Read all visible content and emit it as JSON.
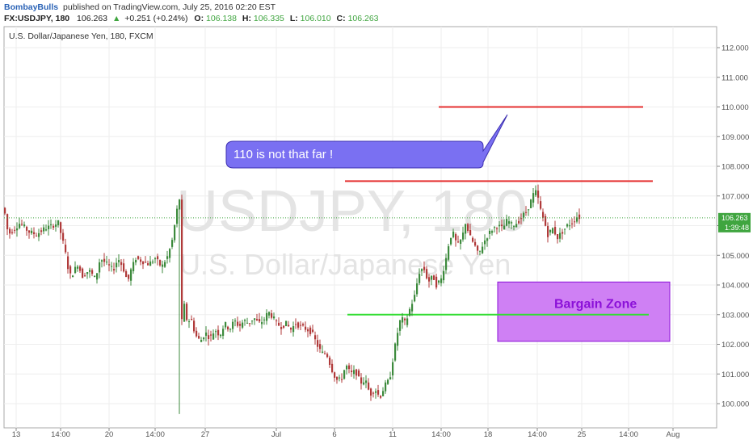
{
  "header": {
    "author": "BombayBulls",
    "published_text": "published on TradingView.com, July 25, 2016 02:20 EST",
    "symbol_interval": "FX:USDJPY, 180",
    "price": "106.263",
    "change_arrow": "▲",
    "change": "+0.251 (+0.24%)",
    "o_label": "O:",
    "o_value": "106.138",
    "h_label": "H:",
    "h_value": "106.335",
    "l_label": "L:",
    "l_value": "106.010",
    "c_label": "C:",
    "c_value": "106.263"
  },
  "chart_title": "U.S. Dollar/Japanese Yen, 180, FXCM",
  "watermark": {
    "line1": "USDJPY, 180",
    "line2": "U.S. Dollar/Japanese Yen"
  },
  "price_tag": "106.263",
  "countdown": "1:39:48",
  "annotations": {
    "callout_text": "110 is not that far !",
    "zone_label": "Bargain Zone"
  },
  "colors": {
    "up_candle": "#3c8a3c",
    "down_candle": "#b03a3a",
    "red_line": "#e53030",
    "green_line": "#33dd33",
    "callout_fill": "#7a70f2",
    "zone_fill": "#cf80f4",
    "zone_text": "#8b10d8",
    "price_tag": "#3fa53f"
  },
  "chart_data": {
    "type": "candlestick",
    "title": "U.S. Dollar/Japanese Yen, 180, FXCM",
    "ylim": [
      99.3,
      112.7
    ],
    "y_ticks": [
      "100.000",
      "101.000",
      "102.000",
      "103.000",
      "104.000",
      "105.000",
      "106.000",
      "107.000",
      "108.000",
      "109.000",
      "110.000",
      "111.000",
      "112.000"
    ],
    "x_ticks": [
      "13",
      "14:00",
      "20",
      "14:00",
      "27",
      "Jul",
      "6",
      "11",
      "14:00",
      "18",
      "14:00",
      "25",
      "14:00",
      "Aug"
    ],
    "path_points": [
      [
        0,
        106.8
      ],
      [
        6,
        106.4
      ],
      [
        10,
        105.7
      ],
      [
        18,
        105.9
      ],
      [
        25,
        106.1
      ],
      [
        35,
        105.8
      ],
      [
        45,
        105.7
      ],
      [
        55,
        105.9
      ],
      [
        65,
        106.0
      ],
      [
        72,
        106.1
      ],
      [
        80,
        105.2
      ],
      [
        86,
        104.3
      ],
      [
        90,
        104.4
      ],
      [
        96,
        104.7
      ],
      [
        102,
        104.3
      ],
      [
        110,
        104.5
      ],
      [
        118,
        104.2
      ],
      [
        124,
        104.9
      ],
      [
        132,
        104.7
      ],
      [
        140,
        104.5
      ],
      [
        146,
        104.9
      ],
      [
        152,
        104.6
      ],
      [
        158,
        104.1
      ],
      [
        162,
        104.5
      ],
      [
        168,
        104.9
      ],
      [
        176,
        104.8
      ],
      [
        184,
        104.7
      ],
      [
        192,
        104.9
      ],
      [
        200,
        104.6
      ],
      [
        208,
        105.0
      ],
      [
        214,
        105.6
      ],
      [
        218,
        106.4
      ],
      [
        222,
        106.9
      ],
      [
        224,
        102.6
      ],
      [
        228,
        103.3
      ],
      [
        232,
        102.7
      ],
      [
        236,
        102.9
      ],
      [
        242,
        102.3
      ],
      [
        248,
        102.1
      ],
      [
        254,
        102.4
      ],
      [
        260,
        102.2
      ],
      [
        266,
        102.5
      ],
      [
        272,
        102.3
      ],
      [
        278,
        102.7
      ],
      [
        284,
        102.5
      ],
      [
        290,
        102.8
      ],
      [
        296,
        102.6
      ],
      [
        302,
        102.8
      ],
      [
        308,
        102.7
      ],
      [
        314,
        102.9
      ],
      [
        320,
        102.7
      ],
      [
        326,
        102.8
      ],
      [
        332,
        103.1
      ],
      [
        338,
        102.9
      ],
      [
        342,
        102.7
      ],
      [
        348,
        102.6
      ],
      [
        354,
        102.7
      ],
      [
        360,
        102.5
      ],
      [
        366,
        102.7
      ],
      [
        372,
        102.6
      ],
      [
        380,
        102.5
      ],
      [
        386,
        102.4
      ],
      [
        392,
        102.0
      ],
      [
        398,
        101.7
      ],
      [
        404,
        101.7
      ],
      [
        410,
        101.2
      ],
      [
        416,
        100.8
      ],
      [
        422,
        100.8
      ],
      [
        428,
        101.3
      ],
      [
        434,
        101.0
      ],
      [
        440,
        101.1
      ],
      [
        446,
        100.7
      ],
      [
        452,
        100.8
      ],
      [
        458,
        100.3
      ],
      [
        464,
        100.5
      ],
      [
        470,
        100.2
      ],
      [
        476,
        100.6
      ],
      [
        482,
        100.8
      ],
      [
        488,
        101.8
      ],
      [
        492,
        102.4
      ],
      [
        496,
        102.9
      ],
      [
        502,
        102.7
      ],
      [
        506,
        103.1
      ],
      [
        510,
        103.4
      ],
      [
        514,
        103.7
      ],
      [
        518,
        104.4
      ],
      [
        524,
        104.6
      ],
      [
        530,
        104.1
      ],
      [
        536,
        104.3
      ],
      [
        540,
        104.0
      ],
      [
        546,
        104.2
      ],
      [
        552,
        104.9
      ],
      [
        556,
        105.5
      ],
      [
        560,
        105.8
      ],
      [
        566,
        105.3
      ],
      [
        572,
        105.6
      ],
      [
        576,
        106.1
      ],
      [
        582,
        105.6
      ],
      [
        588,
        105.3
      ],
      [
        592,
        105.0
      ],
      [
        598,
        105.4
      ],
      [
        604,
        105.7
      ],
      [
        610,
        105.9
      ],
      [
        616,
        106.0
      ],
      [
        622,
        105.9
      ],
      [
        628,
        106.2
      ],
      [
        634,
        106.0
      ],
      [
        640,
        106.1
      ],
      [
        646,
        106.3
      ],
      [
        652,
        106.5
      ],
      [
        658,
        106.9
      ],
      [
        662,
        107.2
      ],
      [
        666,
        106.9
      ],
      [
        670,
        106.4
      ],
      [
        674,
        106.1
      ],
      [
        678,
        105.7
      ],
      [
        684,
        105.9
      ],
      [
        690,
        105.6
      ],
      [
        696,
        105.8
      ],
      [
        702,
        106.0
      ],
      [
        708,
        106.1
      ],
      [
        714,
        106.3
      ],
      [
        720,
        106.263
      ]
    ],
    "last_close": 106.263,
    "resistance_lines": [
      {
        "y": 110.0,
        "x_start": 543,
        "x_end": 796
      },
      {
        "y": 107.5,
        "x_start": 427,
        "x_end": 808
      }
    ],
    "support_line": {
      "y": 103.0,
      "x_start": 430,
      "x_end": 803
    },
    "bargain_zone": {
      "y_low": 102.1,
      "y_high": 104.1
    }
  }
}
